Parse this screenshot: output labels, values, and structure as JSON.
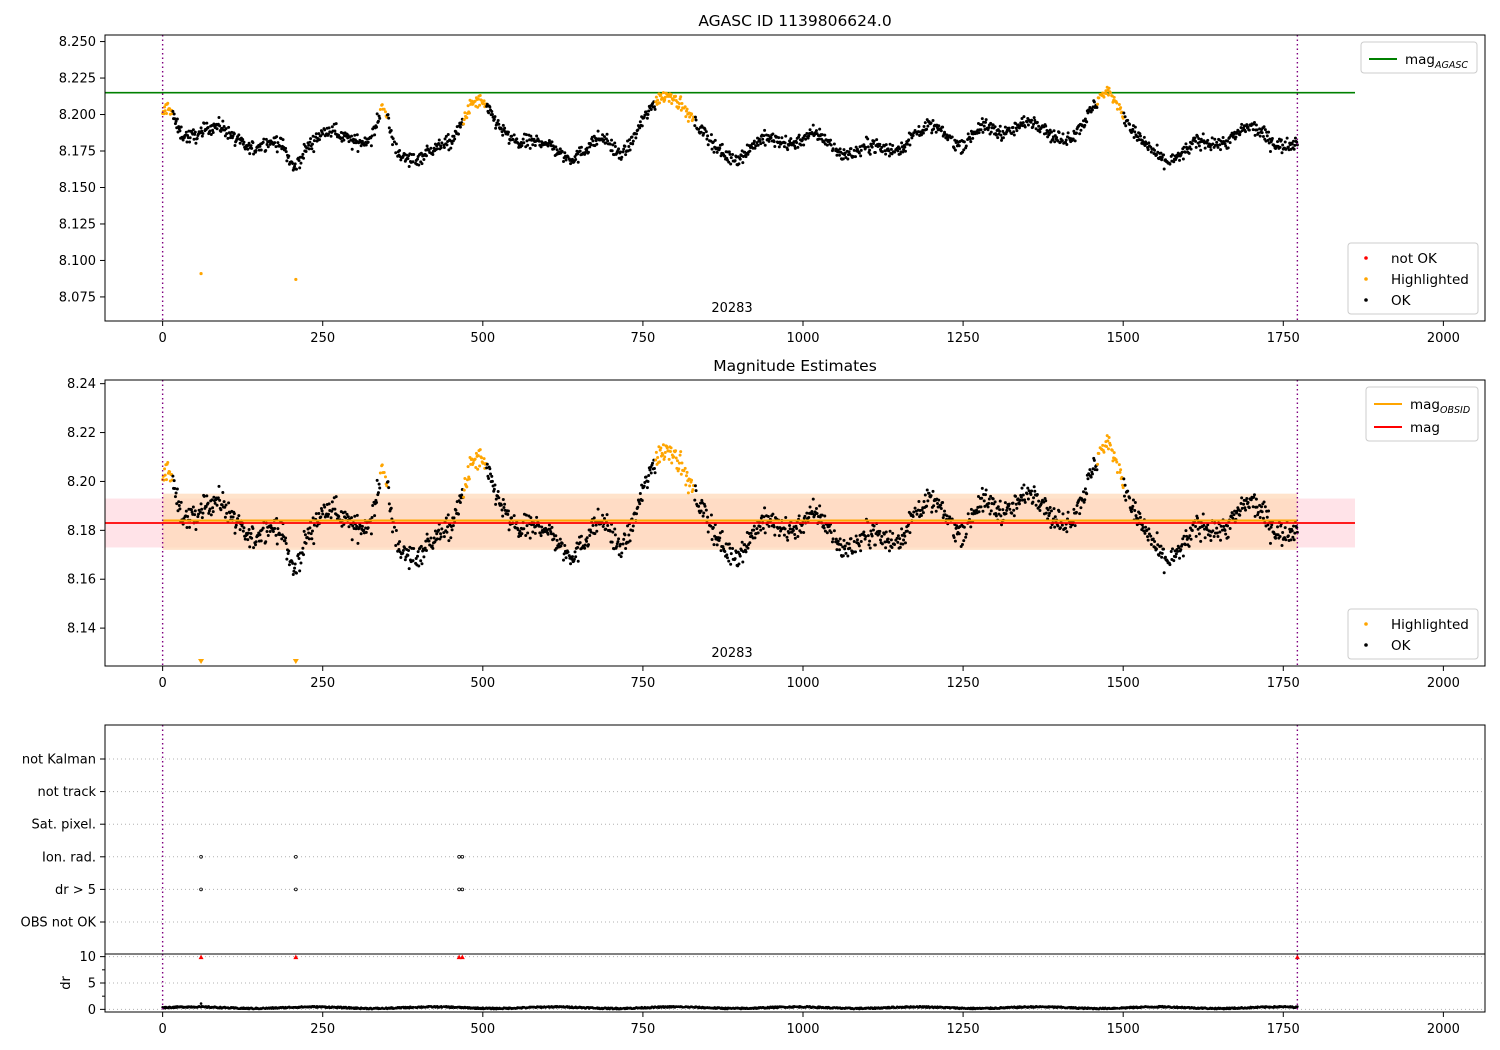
{
  "colors": {
    "ok": "#000000",
    "highlighted": "#ffa500",
    "not_ok": "#ff0000",
    "mag_agasc": "#008000",
    "mag_obsid": "#ffa500",
    "mag": "#ff0000",
    "obsid_line": "#800080",
    "mag_band": "#ffc0cb",
    "obsid_band": "#ffdab9"
  },
  "chart_data": [
    {
      "id": "top",
      "type": "scatter",
      "title": "AGASC ID 1139806624.0",
      "xlim": [
        -90,
        2065
      ],
      "ylim": [
        8.0585,
        8.2545
      ],
      "xticks": [
        0,
        250,
        500,
        750,
        1000,
        1250,
        1500,
        1750,
        2000
      ],
      "yticks": [
        8.075,
        8.1,
        8.125,
        8.15,
        8.175,
        8.2,
        8.225,
        8.25
      ],
      "ytick_labels": [
        "8.075",
        "8.100",
        "8.125",
        "8.150",
        "8.175",
        "8.200",
        "8.225",
        "8.250"
      ],
      "obsid_label": "20283",
      "obsid_lines": [
        0,
        1772
      ],
      "mag_agasc": 8.215,
      "hline_x": [
        -90,
        1862
      ],
      "highlight_ranges": [
        [
          0,
          15
        ],
        [
          340,
          350
        ],
        [
          470,
          505
        ],
        [
          770,
          830
        ],
        [
          1460,
          1500
        ]
      ],
      "outliers": [
        {
          "x": 60,
          "y": 8.091,
          "series": "highlighted"
        },
        {
          "x": 208,
          "y": 8.087,
          "series": "highlighted"
        }
      ],
      "legend_lines": [
        {
          "label": "mag",
          "sub": "AGASC",
          "color_key": "mag_agasc"
        }
      ],
      "legend_markers": [
        {
          "label": "not OK",
          "color_key": "not_ok"
        },
        {
          "label": "Highlighted",
          "color_key": "highlighted"
        },
        {
          "label": "OK",
          "color_key": "ok"
        }
      ]
    },
    {
      "id": "middle",
      "type": "scatter",
      "title": "Magnitude Estimates",
      "xlim": [
        -90,
        2065
      ],
      "ylim": [
        8.1245,
        8.2415
      ],
      "xticks": [
        0,
        250,
        500,
        750,
        1000,
        1250,
        1500,
        1750,
        2000
      ],
      "yticks": [
        8.14,
        8.16,
        8.18,
        8.2,
        8.22,
        8.24
      ],
      "ytick_labels": [
        "8.14",
        "8.16",
        "8.18",
        "8.20",
        "8.22",
        "8.24"
      ],
      "obsid_label": "20283",
      "obsid_lines": [
        0,
        1772
      ],
      "mag": 8.183,
      "mag_band": [
        8.173,
        8.193
      ],
      "mag_obsid": 8.184,
      "obsid_band": [
        8.172,
        8.195
      ],
      "band_x": [
        -90,
        1862
      ],
      "down_markers": [
        60,
        208
      ],
      "legend_lines": [
        {
          "label": "mag",
          "sub": "OBSID",
          "color_key": "mag_obsid"
        },
        {
          "label": "mag",
          "sub": "",
          "color_key": "mag"
        }
      ],
      "legend_markers": [
        {
          "label": "Highlighted",
          "color_key": "highlighted"
        },
        {
          "label": "OK",
          "color_key": "ok"
        }
      ]
    },
    {
      "id": "flags",
      "type": "scatter",
      "xlim": [
        -90,
        2065
      ],
      "flag_labels": [
        "not Kalman",
        "not track",
        "Sat. pixel.",
        "Ion. rad.",
        "dr > 5",
        "OBS not OK"
      ],
      "flag_points": {
        "Ion. rad.": [
          60,
          208,
          463,
          468
        ],
        "dr > 5": [
          60,
          208,
          463,
          468
        ]
      },
      "obsid_lines": [
        0,
        1772
      ]
    },
    {
      "id": "dr",
      "type": "line",
      "ylabel": "dr",
      "xlim": [
        -90,
        2065
      ],
      "ylim": [
        -0.5,
        10.5
      ],
      "xticks": [
        0,
        250,
        500,
        750,
        1000,
        1250,
        1500,
        1750,
        2000
      ],
      "yticks": [
        0,
        5,
        10
      ],
      "ytick_labels": [
        "0",
        "5",
        "10"
      ],
      "clipped_markers": [
        60,
        208,
        463,
        468,
        1772
      ],
      "obsid_lines": [
        0,
        1772
      ]
    }
  ]
}
